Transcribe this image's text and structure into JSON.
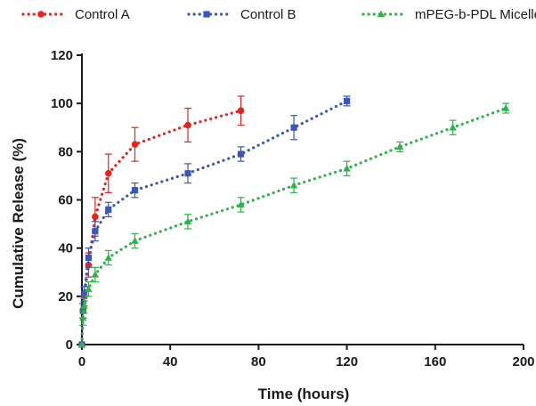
{
  "chart_data": {
    "type": "line",
    "xlabel": "Time (hours)",
    "ylabel": "Cumulative Release (%)",
    "xlim": [
      0,
      200
    ],
    "ylim": [
      0,
      120
    ],
    "xticks": [
      0,
      40,
      80,
      120,
      160,
      200
    ],
    "yticks": [
      0,
      20,
      40,
      60,
      80,
      100,
      120
    ],
    "grid": false,
    "legend_position": "top",
    "line_style": "dotted",
    "series": [
      {
        "name": "Control A",
        "color": "#e8231d",
        "marker": "circle",
        "points": [
          {
            "x": 0,
            "y": 0,
            "err": 0
          },
          {
            "x": 0.5,
            "y": 14,
            "err": 3
          },
          {
            "x": 1,
            "y": 20,
            "err": 4
          },
          {
            "x": 3,
            "y": 33,
            "err": 5
          },
          {
            "x": 6,
            "y": 53,
            "err": 8
          },
          {
            "x": 12,
            "y": 71,
            "err": 8
          },
          {
            "x": 24,
            "y": 83,
            "err": 7
          },
          {
            "x": 48,
            "y": 91,
            "err": 7
          },
          {
            "x": 72,
            "y": 97,
            "err": 6
          }
        ]
      },
      {
        "name": "Control B",
        "color": "#3a57b5",
        "marker": "square",
        "points": [
          {
            "x": 0,
            "y": 0,
            "err": 0
          },
          {
            "x": 0.5,
            "y": 14,
            "err": 3
          },
          {
            "x": 1,
            "y": 21,
            "err": 3
          },
          {
            "x": 3,
            "y": 36,
            "err": 4
          },
          {
            "x": 6,
            "y": 47,
            "err": 4
          },
          {
            "x": 12,
            "y": 56,
            "err": 3
          },
          {
            "x": 24,
            "y": 64,
            "err": 3
          },
          {
            "x": 48,
            "y": 71,
            "err": 4
          },
          {
            "x": 72,
            "y": 79,
            "err": 3
          },
          {
            "x": 96,
            "y": 90,
            "err": 5
          },
          {
            "x": 120,
            "y": 101,
            "err": 2
          }
        ]
      },
      {
        "name": "mPEG-b-PDL Micelles",
        "color": "#2eb24a",
        "marker": "triangle",
        "points": [
          {
            "x": 0,
            "y": 0,
            "err": 0
          },
          {
            "x": 0.5,
            "y": 11,
            "err": 3
          },
          {
            "x": 1,
            "y": 16,
            "err": 3
          },
          {
            "x": 3,
            "y": 23,
            "err": 3
          },
          {
            "x": 6,
            "y": 29,
            "err": 3
          },
          {
            "x": 12,
            "y": 36,
            "err": 3
          },
          {
            "x": 24,
            "y": 43,
            "err": 3
          },
          {
            "x": 48,
            "y": 51,
            "err": 3
          },
          {
            "x": 72,
            "y": 58,
            "err": 3
          },
          {
            "x": 96,
            "y": 66,
            "err": 3
          },
          {
            "x": 120,
            "y": 73,
            "err": 3
          },
          {
            "x": 144,
            "y": 82,
            "err": 2
          },
          {
            "x": 168,
            "y": 90,
            "err": 3
          },
          {
            "x": 192,
            "y": 98,
            "err": 2
          }
        ]
      }
    ]
  }
}
